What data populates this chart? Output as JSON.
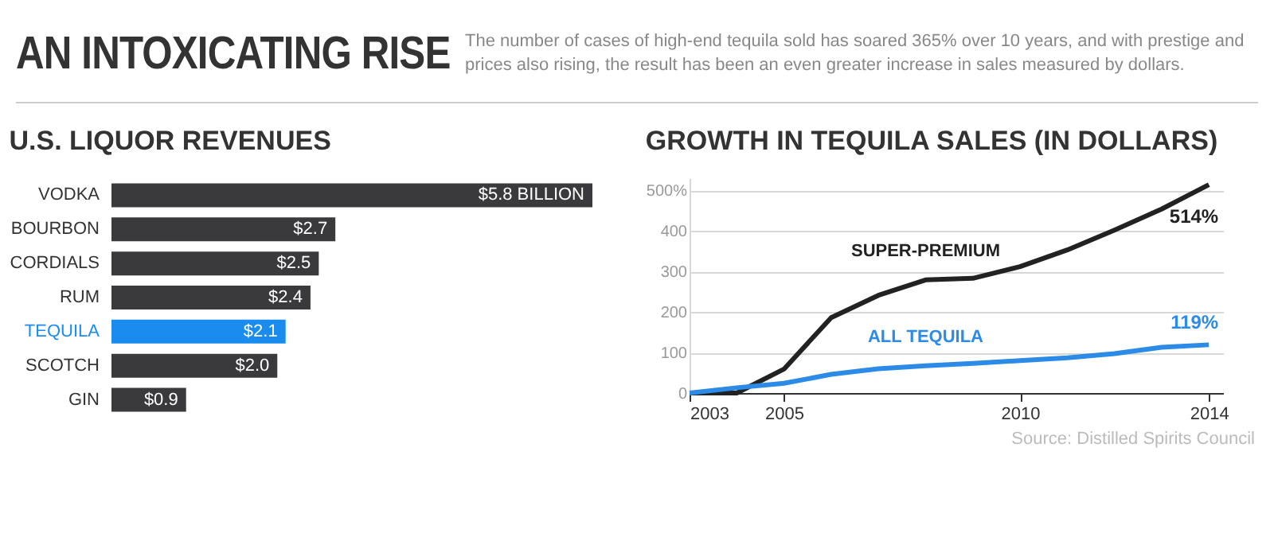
{
  "chart_data": [
    {
      "type": "bar",
      "orientation": "horizontal",
      "title": "U.S. LIQUOR REVENUES",
      "annotations": [
        "AN INTOXICATING RISE",
        "The number of cases of high-end tequila sold has soared 365% over 10 years, and with prestige and prices also rising, the result has been an even greater increase in sales measured by dollars."
      ],
      "categories": [
        "VODKA",
        "BOURBON",
        "CORDIALS",
        "RUM",
        "TEQUILA",
        "SCOTCH",
        "GIN"
      ],
      "values": [
        5.8,
        2.7,
        2.5,
        2.4,
        2.1,
        2.0,
        0.9
      ],
      "value_labels": [
        "$5.8 BILLION",
        "$2.7",
        "$2.5",
        "$2.4",
        "$2.1",
        "$2.0",
        "$0.9"
      ],
      "colors": [
        "#3a3a3c",
        "#3a3a3c",
        "#3a3a3c",
        "#3a3a3c",
        "#1a8cf0",
        "#3a3a3c",
        "#3a3a3c"
      ],
      "xlim": [
        0,
        5.8
      ],
      "tick_labels": "y",
      "grid": false,
      "legend": false
    },
    {
      "type": "line",
      "title": "GROWTH IN TEQUILA SALES (IN DOLLARS)",
      "x": [
        2003,
        2004,
        2005,
        2006,
        2007,
        2008,
        2009,
        2010,
        2011,
        2012,
        2013,
        2014
      ],
      "series": [
        {
          "name": "SUPER-PREMIUM",
          "color": "#222222",
          "values": [
            0,
            0,
            59,
            186,
            241,
            279,
            283,
            312,
            353,
            402,
            454,
            514
          ]
        },
        {
          "name": "ALL TEQUILA",
          "color": "#2b8be6",
          "values": [
            0,
            13,
            24,
            46,
            60,
            67,
            73,
            80,
            87,
            97,
            113,
            119
          ]
        }
      ],
      "annotations": [
        {
          "text": "514%",
          "x": 2014,
          "y": 514
        },
        {
          "text": "119%",
          "x": 2014,
          "y": 119
        },
        "Source: Distilled Spirits Council"
      ],
      "xlim": [
        2003,
        2014.3
      ],
      "xticks": [
        2003,
        2005,
        2010,
        2014
      ],
      "ylim": [
        0,
        530
      ],
      "yticks": [
        0,
        100,
        200,
        300,
        400,
        {
          "value": 500,
          "label": "500%"
        }
      ],
      "grid": "y",
      "legend": false,
      "marker": "none",
      "line_style": "solid"
    }
  ]
}
